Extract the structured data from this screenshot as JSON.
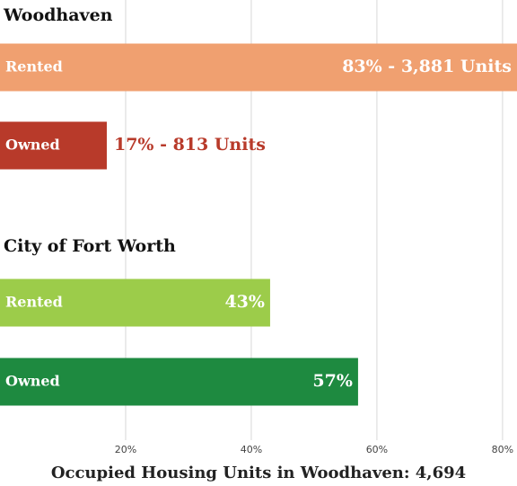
{
  "chart_data": {
    "type": "bar",
    "orientation": "horizontal",
    "groups": [
      {
        "title": "Woodhaven",
        "categories": [
          "Rented",
          "Owned"
        ],
        "values": [
          83,
          17
        ],
        "value_labels": [
          "83%  -  3,881 Units",
          "17%  -  813 Units"
        ],
        "colors": [
          "#f0a070",
          "#b83a2a"
        ]
      },
      {
        "title": "City of Fort Worth",
        "categories": [
          "Rented",
          "Owned"
        ],
        "values": [
          43,
          57
        ],
        "value_labels": [
          "43%",
          "57%"
        ],
        "colors": [
          "#9ccc4a",
          "#1e8a40"
        ]
      }
    ],
    "xlim": [
      0,
      82.3
    ],
    "xticks": [
      {
        "value": 20,
        "label": "20%"
      },
      {
        "value": 40,
        "label": "40%"
      },
      {
        "value": 60,
        "label": "60%"
      },
      {
        "value": 80,
        "label": "80%"
      }
    ],
    "grid": true,
    "xlabel": "Occupied Housing Units in Woodhaven: 4,694"
  }
}
